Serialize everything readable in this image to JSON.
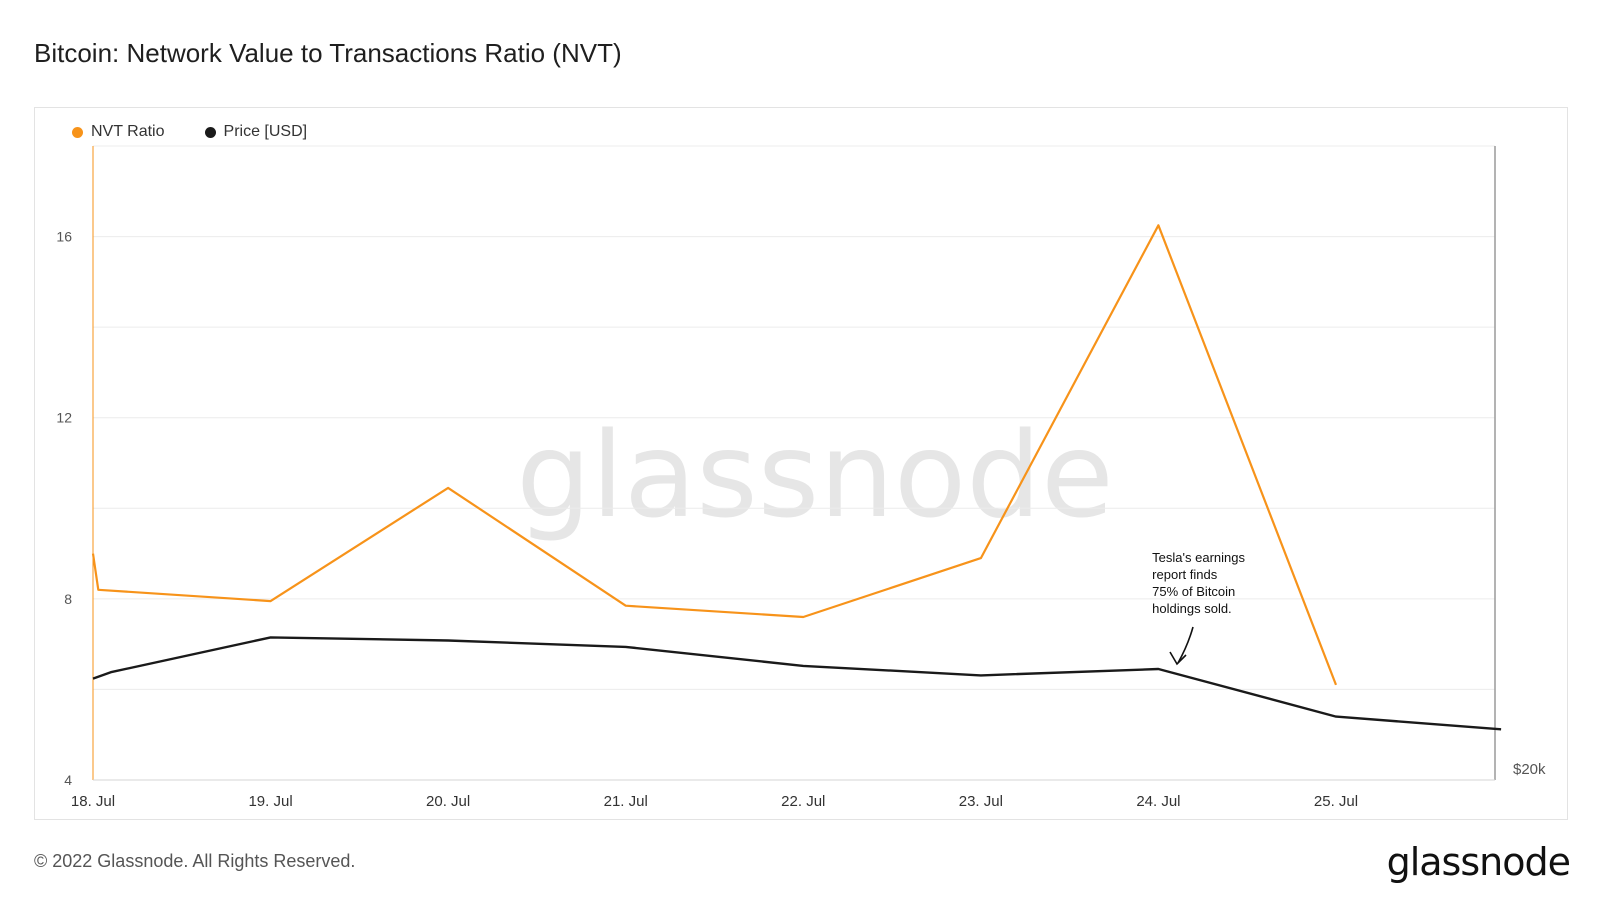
{
  "title": "Bitcoin: Network Value to Transactions Ratio (NVT)",
  "watermark": "glassnode",
  "footer": "© 2022 Glassnode. All Rights Reserved.",
  "logo": "glassnode",
  "colors": {
    "nvt": "#f7931a",
    "price": "#1a1a1a",
    "grid": "#ececec",
    "watermark": "#e6e6e6"
  },
  "chart_data": {
    "type": "line",
    "title": "Bitcoin: Network Value to Transactions Ratio (NVT)",
    "x_ticks": [
      "18. Jul",
      "19. Jul",
      "20. Jul",
      "21. Jul",
      "22. Jul",
      "23. Jul",
      "24. Jul",
      "25. Jul"
    ],
    "y_left": {
      "ticks": [
        "4",
        "8",
        "12",
        "16"
      ],
      "min": 4,
      "max": 18
    },
    "y_right": {
      "ticks": [
        "$20k"
      ],
      "min": 20000,
      "max": 30000
    },
    "grid": true,
    "legend_position": "top-left",
    "series": [
      {
        "name": "NVT Ratio",
        "axis": "left",
        "x": [
          0,
          0.03,
          1,
          2,
          3,
          4,
          5,
          6,
          7
        ],
        "values": [
          9.0,
          8.2,
          7.95,
          10.45,
          7.85,
          7.6,
          8.9,
          16.25,
          6.1
        ]
      },
      {
        "name": "Price [USD]",
        "axis": "right",
        "x": [
          0,
          0.1,
          1,
          2,
          3,
          4,
          5,
          6,
          7,
          7.93
        ],
        "values": [
          21600,
          21700,
          22250,
          22200,
          22100,
          21800,
          21650,
          21750,
          21000,
          20800
        ]
      }
    ],
    "annotation": {
      "text_lines": [
        "Tesla's earnings",
        "report finds",
        "75% of Bitcoin",
        "holdings sold."
      ],
      "x": 6.1
    }
  }
}
